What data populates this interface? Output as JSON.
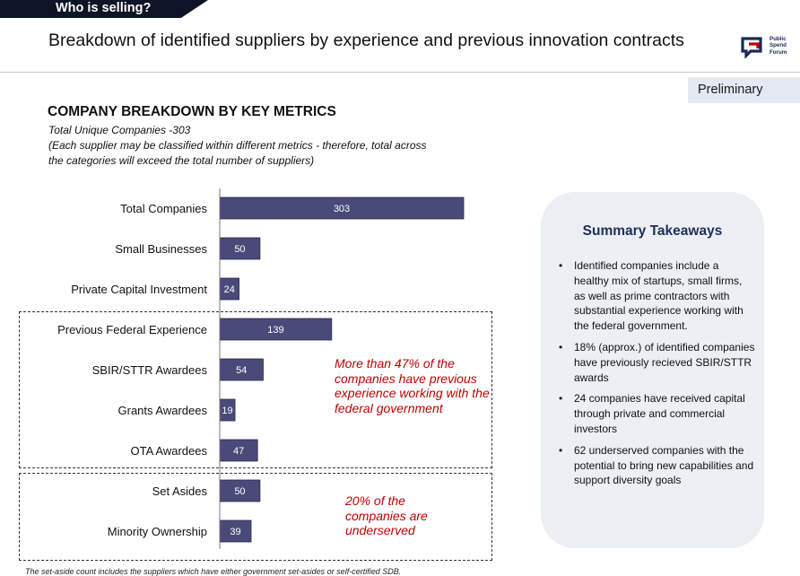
{
  "header": {
    "tab_label": "Who is selling?",
    "title": "Breakdown of identified suppliers by experience and previous innovation contracts",
    "logo_text": [
      "Public",
      "Spend",
      "Forum"
    ],
    "status_badge": "Preliminary"
  },
  "section": {
    "heading": "COMPANY BREAKDOWN BY KEY METRICS",
    "subtitle": "Total Unique Companies -303",
    "note_line1": "(Each supplier may be classified within different metrics - therefore, total across",
    "note_line2": "the categories will exceed the total number of suppliers)"
  },
  "chart_data": {
    "type": "bar",
    "orientation": "horizontal",
    "categories": [
      "Total Companies",
      "Small Businesses",
      "Private Capital Investment",
      "Previous Federal Experience",
      "SBIR/STTR Awardees",
      "Grants Awardees",
      "OTA Awardees",
      "Set Asides",
      "Minority Ownership"
    ],
    "values": [
      303,
      50,
      24,
      139,
      54,
      19,
      47,
      50,
      39
    ],
    "bar_color": "#4a4a7a",
    "label_color": "#ffffff",
    "data_labels": true
  },
  "annotations": {
    "federal_experience": "More than 47% of the companies have previous experience working with the federal government",
    "underserved": "20% of the companies are underserved"
  },
  "footnote": "The set-aside count includes the suppliers which have either government set-asides or self-certified SDB.",
  "summary": {
    "title": "Summary Takeaways",
    "items": [
      "Identified companies include a healthy mix of startups, small firms, as well as prime contractors with substantial experience working with the federal government.",
      "18% (approx.) of identified companies have previously recieved SBIR/STTR awards",
      "24 companies have received capital through private and commercial investors",
      "62 underserved companies with the potential to bring new capabilities and support diversity goals"
    ]
  },
  "colors": {
    "banner": "#0d1426",
    "accent_red": "#c00000",
    "summary_title": "#1f2d5a",
    "summary_bg": "#eceff4",
    "badge_bg": "#e4e9f3"
  }
}
